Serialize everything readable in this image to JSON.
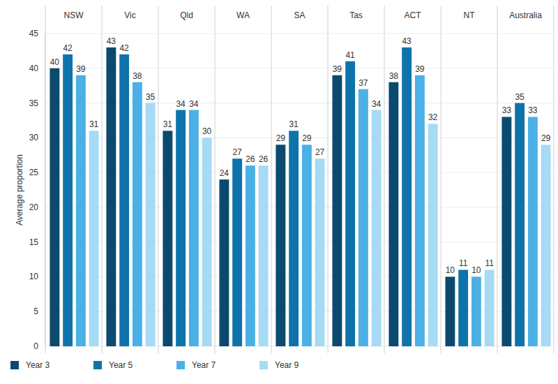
{
  "chart_data": {
    "type": "bar",
    "y_label": "Average proportion",
    "categories": [
      "NSW",
      "Vic",
      "Qld",
      "WA",
      "SA",
      "Tas",
      "ACT",
      "NT",
      "Australia"
    ],
    "series": [
      {
        "name": "Year 3",
        "color": "#0b4a6e",
        "values": [
          40,
          43,
          31,
          24,
          29,
          39,
          38,
          10,
          33
        ]
      },
      {
        "name": "Year 5",
        "color": "#0e73ab",
        "values": [
          42,
          42,
          34,
          27,
          31,
          41,
          43,
          11,
          35
        ]
      },
      {
        "name": "Year 7",
        "color": "#4bb0e6",
        "values": [
          39,
          38,
          34,
          26,
          29,
          37,
          39,
          10,
          33
        ]
      },
      {
        "name": "Year 9",
        "color": "#a6daf5",
        "values": [
          31,
          35,
          30,
          26,
          27,
          34,
          32,
          11,
          29
        ]
      }
    ],
    "ylim": [
      0,
      45
    ],
    "yticks": [
      0,
      5,
      10,
      15,
      20,
      25,
      30,
      35,
      40,
      45
    ],
    "grid": true,
    "data_labels": true,
    "legend": "bottom-left"
  }
}
